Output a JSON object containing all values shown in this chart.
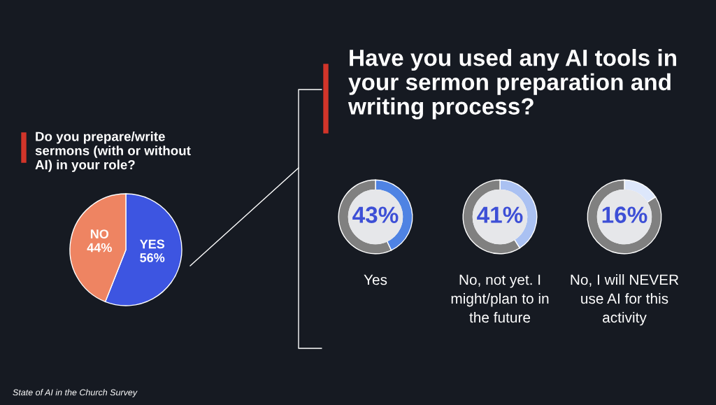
{
  "chart_data": [
    {
      "type": "pie",
      "title": "Do you prepare/write sermons (with or without AI) in your role?",
      "categories": [
        "YES",
        "NO"
      ],
      "values": [
        56,
        44
      ],
      "value_labels": [
        "56%",
        "44%"
      ],
      "colors": [
        "#3d55e1",
        "#ee8462"
      ],
      "annotations": [
        "State of AI in the Church Survey"
      ]
    },
    {
      "type": "donut",
      "title": "Yes",
      "annotations": [
        "Have you used any AI tools in your sermon preparation and writing process?"
      ],
      "categories": [
        null,
        null
      ],
      "values": [
        43,
        57
      ],
      "value_labels": [
        "43%",
        null
      ],
      "colors": [
        "#4f83e3",
        "#808080"
      ]
    },
    {
      "type": "donut",
      "title": "No, not yet. I might/plan to in the future",
      "categories": [
        null,
        null
      ],
      "values": [
        41,
        59
      ],
      "value_labels": [
        "41%",
        null
      ],
      "colors": [
        "#aac1f2",
        "#808080"
      ]
    },
    {
      "type": "donut",
      "title": "No, I will NEVER use AI for this activity",
      "categories": [
        null,
        null
      ],
      "values": [
        16,
        84
      ],
      "value_labels": [
        "16%",
        null
      ],
      "colors": [
        "#dde7fb",
        "#808080"
      ]
    }
  ]
}
